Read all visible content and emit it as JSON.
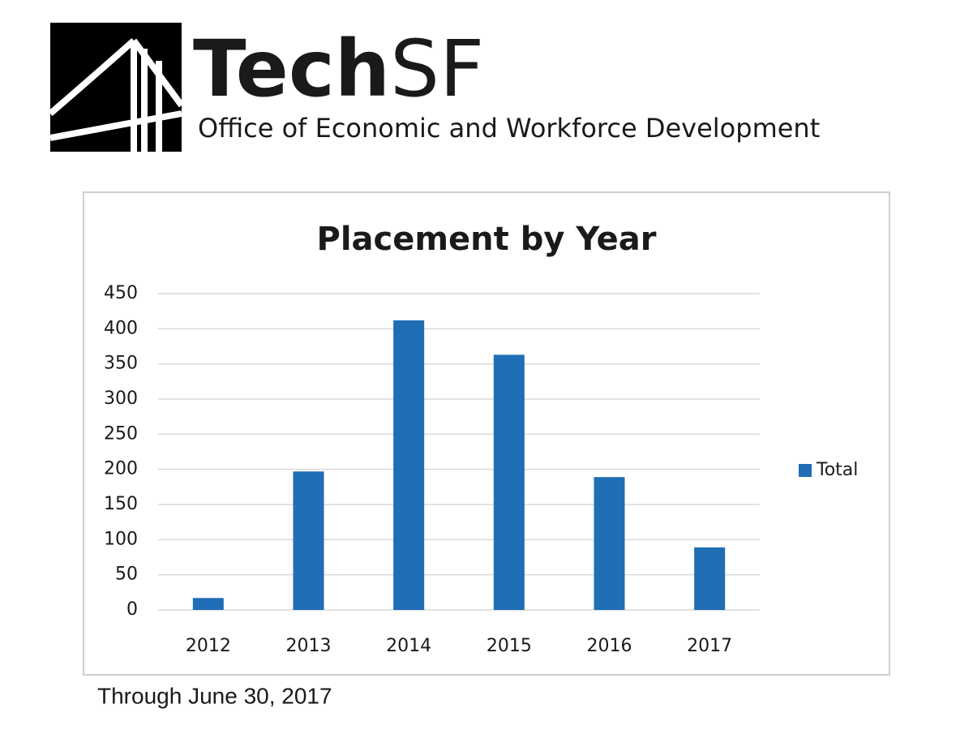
{
  "header": {
    "brand_bold": "Tech",
    "brand_light": "SF",
    "tagline": "Office of Economic and Workforce Development"
  },
  "chart_data": {
    "type": "bar",
    "title": "Placement by Year",
    "categories": [
      "2012",
      "2013",
      "2014",
      "2015",
      "2016",
      "2017"
    ],
    "series": [
      {
        "name": "Total",
        "color": "#1f6eb6",
        "values": [
          17,
          197,
          412,
          363,
          189,
          89
        ]
      }
    ],
    "ylim": [
      0,
      450
    ],
    "yticks": [
      0,
      50,
      100,
      150,
      200,
      250,
      300,
      350,
      400,
      450
    ],
    "grid": true,
    "legend": "right"
  },
  "footnote": "Through June 30, 2017"
}
